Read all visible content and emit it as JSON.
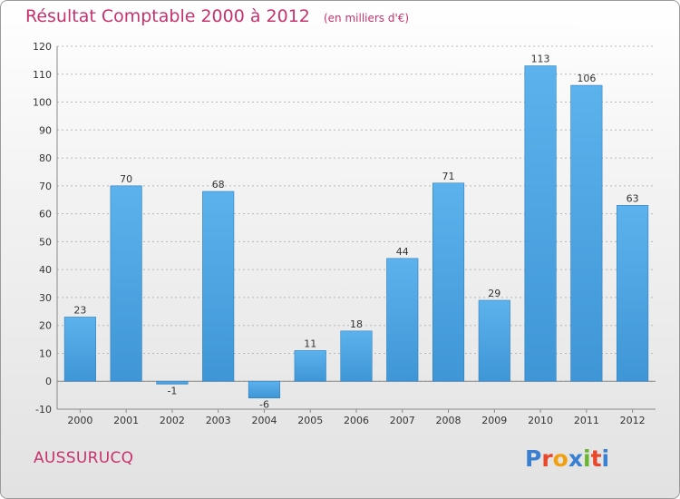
{
  "header": {
    "title": "Résultat Comptable 2000 à 2012",
    "unit": "(en milliers d'€)"
  },
  "footer": {
    "commune": "AUSSURUCQ",
    "brand": "Proxiti"
  },
  "colors": {
    "bar": "#3f96d6",
    "bar_light": "#5cb2ec",
    "title": "#c8326e",
    "axis_text": "#333333",
    "brand_letters": [
      "#3a7fd0",
      "#e8472c",
      "#f0a010",
      "#3a7fd0",
      "#6ab52e",
      "#e8472c",
      "#3a7fd0"
    ]
  },
  "chart_data": {
    "type": "bar",
    "title": "Résultat Comptable 2000 à 2012",
    "subtitle": "(en milliers d'€)",
    "categories": [
      "2000",
      "2001",
      "2002",
      "2003",
      "2004",
      "2005",
      "2006",
      "2007",
      "2008",
      "2009",
      "2010",
      "2011",
      "2012"
    ],
    "values": [
      23,
      70,
      -1,
      68,
      -6,
      11,
      18,
      44,
      71,
      29,
      113,
      106,
      63
    ],
    "ylim": [
      -10,
      120
    ],
    "yticks": [
      -10,
      0,
      10,
      20,
      30,
      40,
      50,
      60,
      70,
      80,
      90,
      100,
      110,
      120
    ],
    "grid": true,
    "legend": "none"
  }
}
